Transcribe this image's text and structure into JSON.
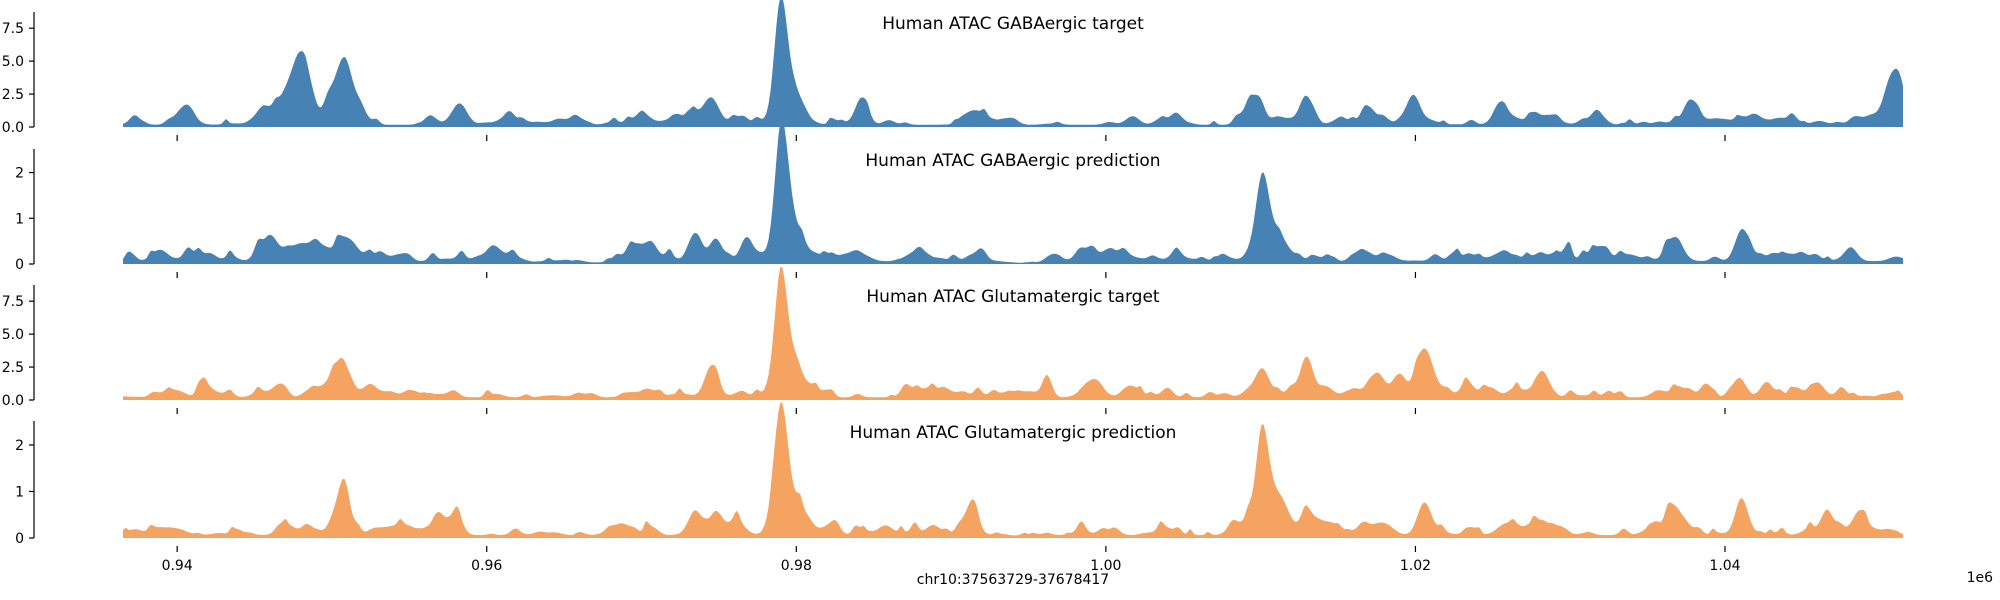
{
  "figure": {
    "xlabel": "chr10:37563729-37678417",
    "x_offset_label": "1e6"
  },
  "chart_data": [
    {
      "type": "area",
      "title": "Human ATAC GABAergic target",
      "color": "#4682b4",
      "xlim": [
        0.9365,
        1.0515
      ],
      "ylim": [
        0,
        8.5
      ],
      "yticks": [
        0.0,
        2.5,
        5.0,
        7.5
      ],
      "ytick_labels": [
        "0.0",
        "2.5",
        "5.0",
        "7.5"
      ],
      "xticks": [
        0.94,
        0.96,
        0.98,
        1.0,
        1.02,
        1.04
      ],
      "xtick_labels": [],
      "baseline": 0.5,
      "peaks": [
        {
          "x": 0.9407,
          "y": 1.5,
          "w": 0.0004
        },
        {
          "x": 0.9455,
          "y": 1.3,
          "w": 0.0005
        },
        {
          "x": 0.9472,
          "y": 2.2,
          "w": 0.0008
        },
        {
          "x": 0.9481,
          "y": 4.6,
          "w": 0.0006
        },
        {
          "x": 0.9503,
          "y": 2.4,
          "w": 0.0005
        },
        {
          "x": 0.9509,
          "y": 2.9,
          "w": 0.0004
        },
        {
          "x": 0.9515,
          "y": 1.6,
          "w": 0.0005
        },
        {
          "x": 0.9582,
          "y": 1.6,
          "w": 0.0005
        },
        {
          "x": 0.9745,
          "y": 2.2,
          "w": 0.0005
        },
        {
          "x": 0.979,
          "y": 8.2,
          "w": 0.0004
        },
        {
          "x": 0.9797,
          "y": 2.6,
          "w": 0.0007
        },
        {
          "x": 0.9842,
          "y": 1.5,
          "w": 0.0004
        },
        {
          "x": 1.0096,
          "y": 2.0,
          "w": 0.0005
        },
        {
          "x": 1.0129,
          "y": 2.1,
          "w": 0.0004
        },
        {
          "x": 1.0198,
          "y": 2.2,
          "w": 0.0004
        },
        {
          "x": 1.0255,
          "y": 1.7,
          "w": 0.0004
        },
        {
          "x": 1.0377,
          "y": 2.0,
          "w": 0.0004
        },
        {
          "x": 1.0508,
          "y": 2.4,
          "w": 0.0005
        },
        {
          "x": 1.0513,
          "y": 2.0,
          "w": 0.0004
        }
      ]
    },
    {
      "type": "area",
      "title": "Human ATAC GABAergic prediction",
      "color": "#4682b4",
      "xlim": [
        0.9365,
        1.0515
      ],
      "ylim": [
        0,
        2.45
      ],
      "yticks": [
        0,
        1,
        2
      ],
      "ytick_labels": [
        "0",
        "1",
        "2"
      ],
      "xticks": [
        0.94,
        0.96,
        0.98,
        1.0,
        1.02,
        1.04
      ],
      "xtick_labels": [],
      "baseline": 0.18,
      "peaks": [
        {
          "x": 0.946,
          "y": 0.45,
          "w": 0.0006
        },
        {
          "x": 0.948,
          "y": 0.45,
          "w": 0.0007
        },
        {
          "x": 0.951,
          "y": 0.5,
          "w": 0.0006
        },
        {
          "x": 0.9735,
          "y": 0.55,
          "w": 0.0004
        },
        {
          "x": 0.9748,
          "y": 0.55,
          "w": 0.0004
        },
        {
          "x": 0.9768,
          "y": 0.6,
          "w": 0.0004
        },
        {
          "x": 0.979,
          "y": 2.35,
          "w": 0.0004
        },
        {
          "x": 0.9797,
          "y": 0.8,
          "w": 0.0008
        },
        {
          "x": 1.0101,
          "y": 1.6,
          "w": 0.0004
        },
        {
          "x": 1.0108,
          "y": 0.65,
          "w": 0.0008
        },
        {
          "x": 1.0368,
          "y": 0.5,
          "w": 0.0005
        },
        {
          "x": 1.0411,
          "y": 0.65,
          "w": 0.0004
        }
      ],
      "dips": [
        [
          0.962,
          0.969
        ],
        [
          0.993,
          0.997
        ]
      ]
    },
    {
      "type": "area",
      "title": "Human ATAC Glutamatergic target",
      "color": "#f4a460",
      "xlim": [
        0.9365,
        1.0515
      ],
      "ylim": [
        0,
        8.5
      ],
      "yticks": [
        0.0,
        2.5,
        5.0,
        7.5
      ],
      "ytick_labels": [
        "0.0",
        "2.5",
        "5.0",
        "7.5"
      ],
      "xticks": [
        0.94,
        0.96,
        0.98,
        1.0,
        1.02,
        1.04
      ],
      "xtick_labels": [],
      "baseline": 0.6,
      "peaks": [
        {
          "x": 0.9505,
          "y": 2.2,
          "w": 0.0005
        },
        {
          "x": 0.9745,
          "y": 2.3,
          "w": 0.0004
        },
        {
          "x": 0.979,
          "y": 8.0,
          "w": 0.0004
        },
        {
          "x": 0.9797,
          "y": 2.5,
          "w": 0.0007
        },
        {
          "x": 0.9962,
          "y": 1.8,
          "w": 0.0003
        },
        {
          "x": 1.0101,
          "y": 1.9,
          "w": 0.0004
        },
        {
          "x": 1.013,
          "y": 2.9,
          "w": 0.0004
        },
        {
          "x": 1.0175,
          "y": 1.4,
          "w": 0.0004
        },
        {
          "x": 1.0205,
          "y": 3.4,
          "w": 0.0005
        },
        {
          "x": 1.0282,
          "y": 1.6,
          "w": 0.0004
        },
        {
          "x": 1.041,
          "y": 1.5,
          "w": 0.0004
        },
        {
          "x": 1.0427,
          "y": 1.4,
          "w": 0.0004
        }
      ]
    },
    {
      "type": "area",
      "title": "Human ATAC Glutamatergic prediction",
      "color": "#f4a460",
      "xlim": [
        0.9365,
        1.0515
      ],
      "ylim": [
        0,
        2.45
      ],
      "yticks": [
        0,
        1,
        2
      ],
      "ytick_labels": [
        "0",
        "1",
        "2"
      ],
      "xticks": [
        0.94,
        0.96,
        0.98,
        1.0,
        1.02,
        1.04
      ],
      "xtick_labels": [
        "0.94",
        "0.96",
        "0.98",
        "1.00",
        "1.02",
        "1.04"
      ],
      "baseline": 0.18,
      "peaks": [
        {
          "x": 0.9505,
          "y": 0.6,
          "w": 0.0005
        },
        {
          "x": 0.9508,
          "y": 0.75,
          "w": 0.0003
        },
        {
          "x": 0.9568,
          "y": 0.5,
          "w": 0.0004
        },
        {
          "x": 0.958,
          "y": 0.55,
          "w": 0.0004
        },
        {
          "x": 0.9735,
          "y": 0.55,
          "w": 0.0004
        },
        {
          "x": 0.9748,
          "y": 0.5,
          "w": 0.0004
        },
        {
          "x": 0.979,
          "y": 2.35,
          "w": 0.0004
        },
        {
          "x": 0.9797,
          "y": 0.8,
          "w": 0.0008
        },
        {
          "x": 0.9913,
          "y": 0.65,
          "w": 0.0004
        },
        {
          "x": 1.0101,
          "y": 1.7,
          "w": 0.0004
        },
        {
          "x": 1.0108,
          "y": 0.7,
          "w": 0.0008
        },
        {
          "x": 1.013,
          "y": 0.6,
          "w": 0.0004
        },
        {
          "x": 1.0205,
          "y": 0.55,
          "w": 0.0004
        },
        {
          "x": 1.0368,
          "y": 0.5,
          "w": 0.0004
        },
        {
          "x": 1.0411,
          "y": 0.75,
          "w": 0.0004
        },
        {
          "x": 1.0487,
          "y": 0.45,
          "w": 0.0004
        }
      ],
      "dips": [
        [
          0.962,
          0.969
        ],
        [
          0.993,
          0.997
        ]
      ]
    }
  ]
}
